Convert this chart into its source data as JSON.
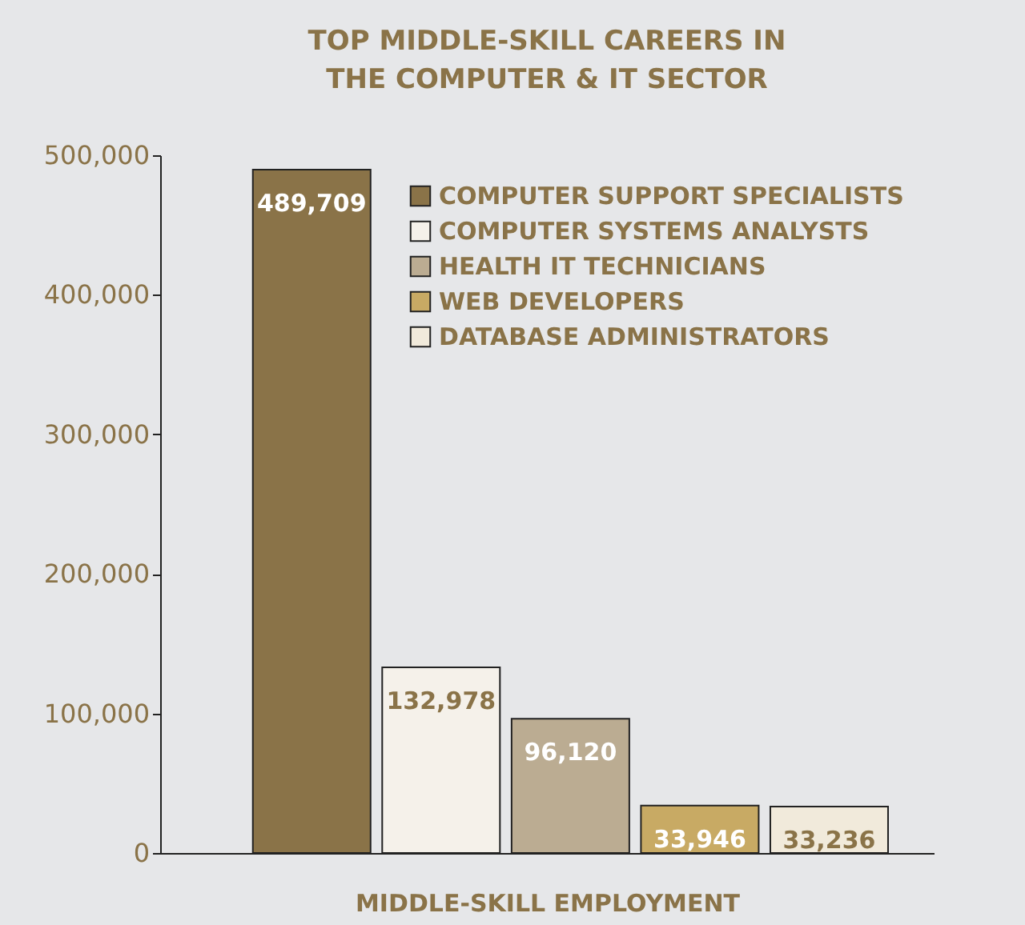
{
  "chart_data": {
    "type": "bar",
    "title": "TOP MIDDLE-SKILL CAREERS IN THE COMPUTER & IT SECTOR",
    "xlabel": "MIDDLE-SKILL EMPLOYMENT",
    "categories": [
      null
    ],
    "series": [
      {
        "name": "COMPUTER SUPPORT SPECIALISTS",
        "color": "#8a7348",
        "values": [
          489709
        ],
        "value_labels": [
          "489,709"
        ]
      },
      {
        "name": "COMPUTER SYSTEMS ANALYSTS",
        "color": "#f5f1ea",
        "values": [
          132978
        ],
        "value_labels": [
          "132,978"
        ]
      },
      {
        "name": "HEALTH IT TECHNICIANS",
        "color": "#bbac92",
        "values": [
          96120
        ],
        "value_labels": [
          "96,120"
        ]
      },
      {
        "name": "WEB DEVELOPERS",
        "color": "#c8aa64",
        "values": [
          33946
        ],
        "value_labels": [
          "33,946"
        ]
      },
      {
        "name": "DATABASE ADMINISTRATORS",
        "color": "#f1eadb",
        "values": [
          33236
        ],
        "value_labels": [
          "33,236"
        ]
      }
    ],
    "ylim": [
      0,
      500000
    ],
    "yticks": [
      0,
      {
        "value": 100000,
        "label": "100,000"
      },
      {
        "value": 200000,
        "label": "200,000"
      },
      {
        "value": 300000,
        "label": "300,000"
      },
      {
        "value": 400000,
        "label": "400,000"
      },
      {
        "value": 500000,
        "label": "500,000"
      }
    ],
    "grid": false,
    "legend": "top right"
  }
}
